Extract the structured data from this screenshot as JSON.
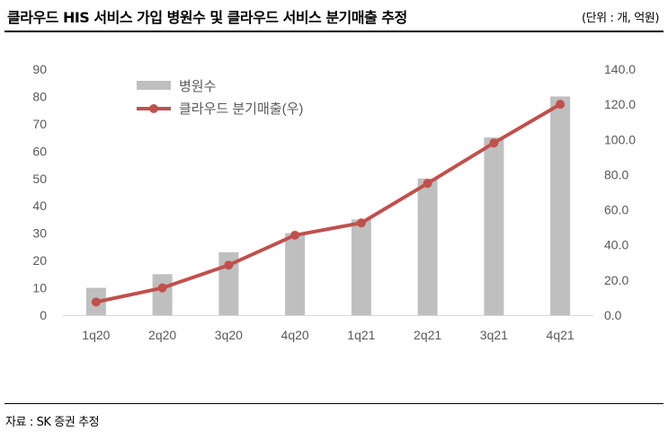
{
  "header": {
    "title": "클라우드 HIS 서비스 가입 병원수 및 클라우드 서비스 분기매출 추정",
    "unit": "(단위 : 개, 억원)"
  },
  "footer": {
    "source": "자료 : SK 증권 추정"
  },
  "colors": {
    "bar": "#bfbfbf",
    "line": "#c0504d",
    "axis_text": "#595959",
    "axis_line": "#d9d9d9"
  },
  "chart_data": {
    "type": "bar",
    "categories": [
      "1q20",
      "2q20",
      "3q20",
      "4q20",
      "1q21",
      "2q21",
      "3q21",
      "4q21"
    ],
    "series": [
      {
        "name": "병원수",
        "type": "bar",
        "axis": "left",
        "values": [
          10,
          15,
          23,
          30,
          35,
          50,
          65,
          80
        ]
      },
      {
        "name": "클라우드 분기매출(우)",
        "type": "line",
        "axis": "right",
        "values": [
          7.5,
          15.5,
          28.5,
          45.5,
          52.5,
          75.0,
          98.0,
          120.0
        ]
      }
    ],
    "left_axis": {
      "ylim": [
        0,
        90
      ],
      "ticks": [
        "0",
        "10",
        "20",
        "30",
        "40",
        "50",
        "60",
        "70",
        "80",
        "90"
      ]
    },
    "right_axis": {
      "ylim": [
        0,
        140
      ],
      "ticks": [
        "0.0",
        "20.0",
        "40.0",
        "60.0",
        "80.0",
        "100.0",
        "120.0",
        "140.0"
      ]
    },
    "legend": {
      "placement": "top-left",
      "entries": [
        "병원수",
        "클라우드 분기매출(우)"
      ]
    },
    "grid": false
  }
}
